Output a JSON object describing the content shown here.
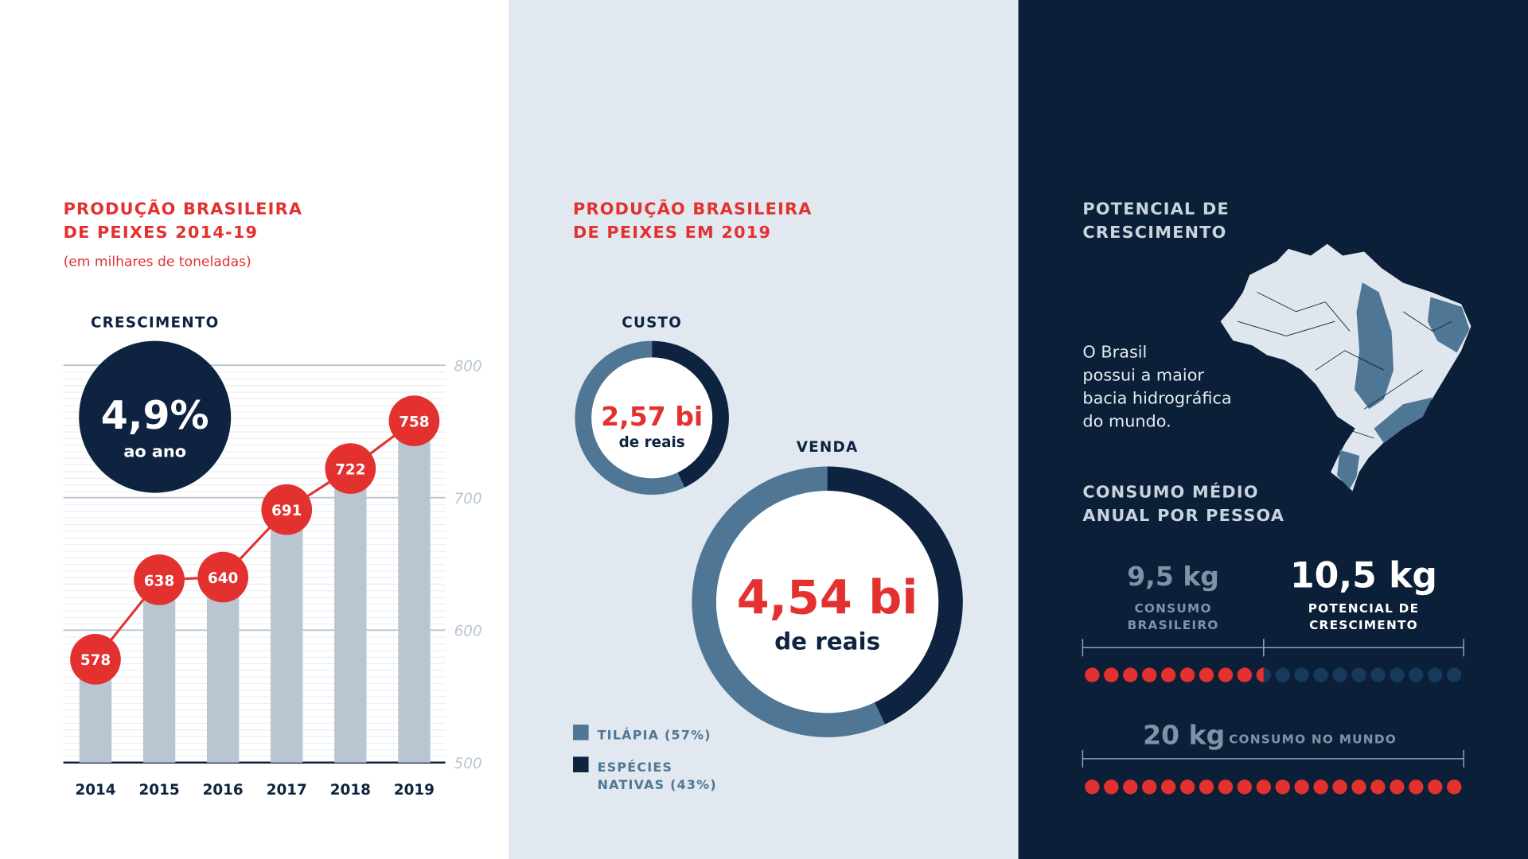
{
  "chart_data": [
    {
      "type": "bar_line",
      "title": "PRODUÇÃO BRASILEIRA\nDE PEIXES 2014-19",
      "subtitle": "(em milhares de toneladas)",
      "categories": [
        "2014",
        "2015",
        "2016",
        "2017",
        "2018",
        "2019"
      ],
      "values": [
        578,
        638,
        640,
        691,
        722,
        758
      ],
      "color": "#b9c6d1",
      "line_color": "#e2312f",
      "ylim": [
        500,
        800
      ],
      "yticks": [
        500,
        600,
        700,
        800
      ],
      "grid": true,
      "annotation": {
        "label": "CRESCIMENTO",
        "value": "4,9%",
        "text": "ao ano"
      }
    },
    {
      "type": "donut",
      "title": "PRODUÇÃO BRASILEIRA\nDE PEIXES EM 2019",
      "categories": [
        "TILÁPIA (57%)",
        "ESPÉCIES\nNATIVAS (43%)"
      ],
      "values": [
        57,
        43
      ],
      "colors": [
        "#4f7795",
        "#0e2340"
      ],
      "donuts": [
        {
          "label": "CUSTO",
          "center": "2,57 bi",
          "unit": "de reais"
        },
        {
          "label": "VENDA",
          "center": "4,54 bi",
          "unit": "de reais"
        }
      ]
    },
    {
      "type": "dots",
      "title": "CONSUMO MÉDIO\nANUAL POR PESSOA",
      "series": [
        {
          "name": "CONSUMO\nBRASILEIRO",
          "color": "#e2312f",
          "values": [
            9.5
          ],
          "value_labels": [
            "9,5 kg"
          ]
        },
        {
          "name": "POTENCIAL DE\nCRESCIMENTO",
          "color": "#17395a",
          "values": [
            10.5
          ],
          "value_labels": [
            "10,5 kg"
          ]
        }
      ],
      "total": {
        "name": "CONSUMO NO MUNDO",
        "color": "#e2312f",
        "values": [
          20
        ],
        "value_labels": [
          "20 kg"
        ]
      },
      "xlim": [
        0,
        20
      ]
    }
  ],
  "panel": {
    "title": "POTENCIAL DE\nCRESCIMENTO",
    "text": "O Brasil\npossui a maior\nbacia hidrográfica\ndo mundo."
  }
}
